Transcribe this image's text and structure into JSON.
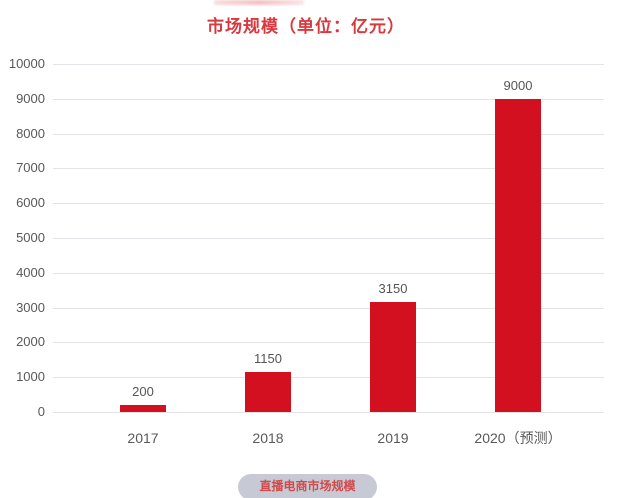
{
  "chart_data": {
    "type": "bar",
    "title": "市场规模（单位：亿元）",
    "categories": [
      "2017",
      "2018",
      "2019",
      "2020（预测）"
    ],
    "values": [
      200,
      1150,
      3150,
      9000
    ],
    "value_labels": [
      "200",
      "1150",
      "3150",
      "9000"
    ],
    "xlabel": "",
    "ylabel": "",
    "ylim": [
      0,
      10000
    ],
    "ytick_step": 1000,
    "grid": true,
    "legend": "none",
    "bar_color": "#d2101f",
    "gridline_color": "#e4e4e8",
    "title_color": "#d9383d",
    "tick_label_color": "#595959"
  },
  "footer": {
    "badge_label": "直播电商市场规模",
    "badge_bg": "#c7cad5",
    "badge_text_color": "#d04a4a"
  }
}
